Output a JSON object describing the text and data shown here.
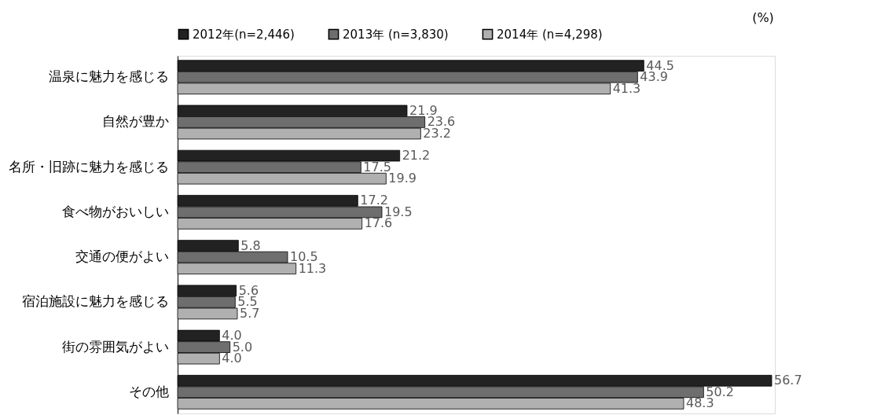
{
  "chart_data": {
    "type": "bar",
    "orientation": "horizontal",
    "categories": [
      "温泉に魅力を感じる",
      "自然が豊か",
      "名所・旧跡に魅力を感じる",
      "食べ物がおいしい",
      "交通の便がよい",
      "宿泊施設に魅力を感じる",
      "街の雰囲気がよい",
      "その他"
    ],
    "series": [
      {
        "name": "2012年(n=2,446)",
        "color": "#222222",
        "values": [
          44.5,
          21.9,
          21.2,
          17.2,
          5.8,
          5.6,
          4,
          56.7
        ],
        "value_labels": [
          "44.5",
          "21.9",
          "21.2",
          "17.2",
          "5.8",
          "5.6",
          "4.0",
          "56.7"
        ]
      },
      {
        "name": "2013年 (n=3,830)",
        "color": "#6e6e6e",
        "values": [
          43.9,
          23.6,
          17.5,
          19.5,
          10.5,
          5.5,
          5,
          50.2
        ],
        "value_labels": [
          "43.9",
          "23.6",
          "17.5",
          "19.5",
          "10.5",
          "5.5",
          "5.0",
          "50.2"
        ]
      },
      {
        "name": "2014年 (n=4,298)",
        "color": "#b0b0b0",
        "values": [
          41.3,
          23.2,
          19.9,
          17.6,
          11.3,
          5.7,
          4,
          48.3
        ],
        "value_labels": [
          "41.3",
          "23.2",
          "19.9",
          "17.6",
          "11.3",
          "5.7",
          "4.0",
          "48.3"
        ]
      }
    ],
    "xlim": [
      0,
      57
    ],
    "legend": "top",
    "tick_labels": "y",
    "annotations": [
      "(%)"
    ]
  }
}
